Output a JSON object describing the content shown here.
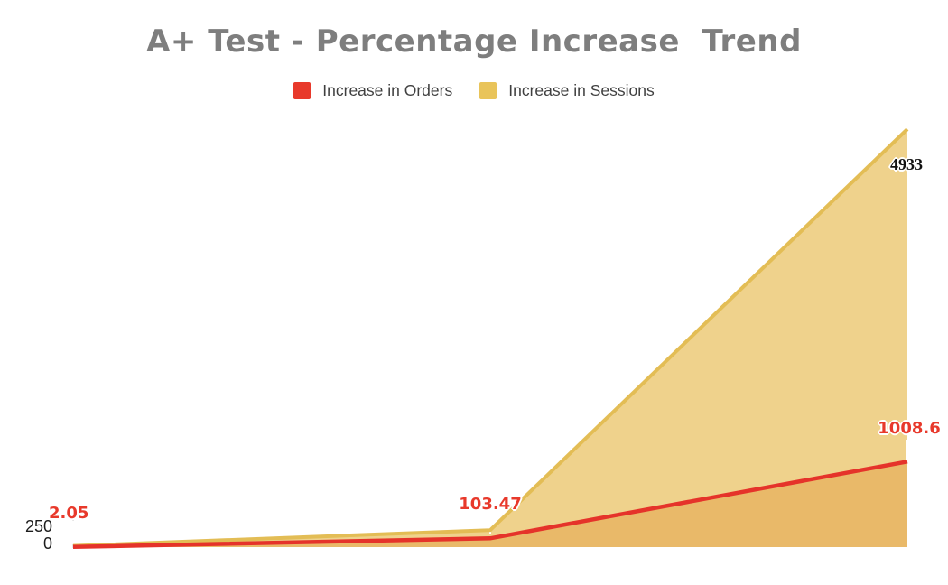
{
  "header": {
    "title": "A+ Test - Percentage Increase  Trend",
    "title_color": "#7e7e7e"
  },
  "legend": {
    "items": [
      {
        "label": "Increase in Orders",
        "color": "#e8392b"
      },
      {
        "label": "Increase in Sessions",
        "color": "#e9c45a"
      }
    ]
  },
  "y_axis": {
    "labels": [
      {
        "text": "250"
      },
      {
        "text": "0"
      }
    ],
    "axis_line_color": "#dcdcdc",
    "text_color": "#1c1c1c"
  },
  "chart_data": {
    "type": "area",
    "title": "A+ Test - Percentage Increase  Trend",
    "categories": [
      "",
      "",
      ""
    ],
    "x_axis_labels_visible": false,
    "series": [
      {
        "name": "Increase in Orders",
        "line_color": "#e5332a",
        "overlap_fill_color": "#e9b969",
        "values": [
          2.05,
          103.47,
          1008.6
        ],
        "annotations": [
          "2.05",
          "103.47",
          "1008.6"
        ],
        "annotation_color": "#e8392b"
      },
      {
        "name": "Increase in Sessions",
        "line_color": "#e3bd55",
        "fill_color": "#efd28c",
        "values": [
          15,
          200,
          4933
        ],
        "annotations": [
          "",
          "",
          "4933"
        ],
        "annotation_color": "#111111"
      }
    ],
    "ylim": [
      0,
      4933
    ],
    "y_ticks_shown": [
      0,
      250
    ],
    "grid": false,
    "legend_position": "top"
  }
}
